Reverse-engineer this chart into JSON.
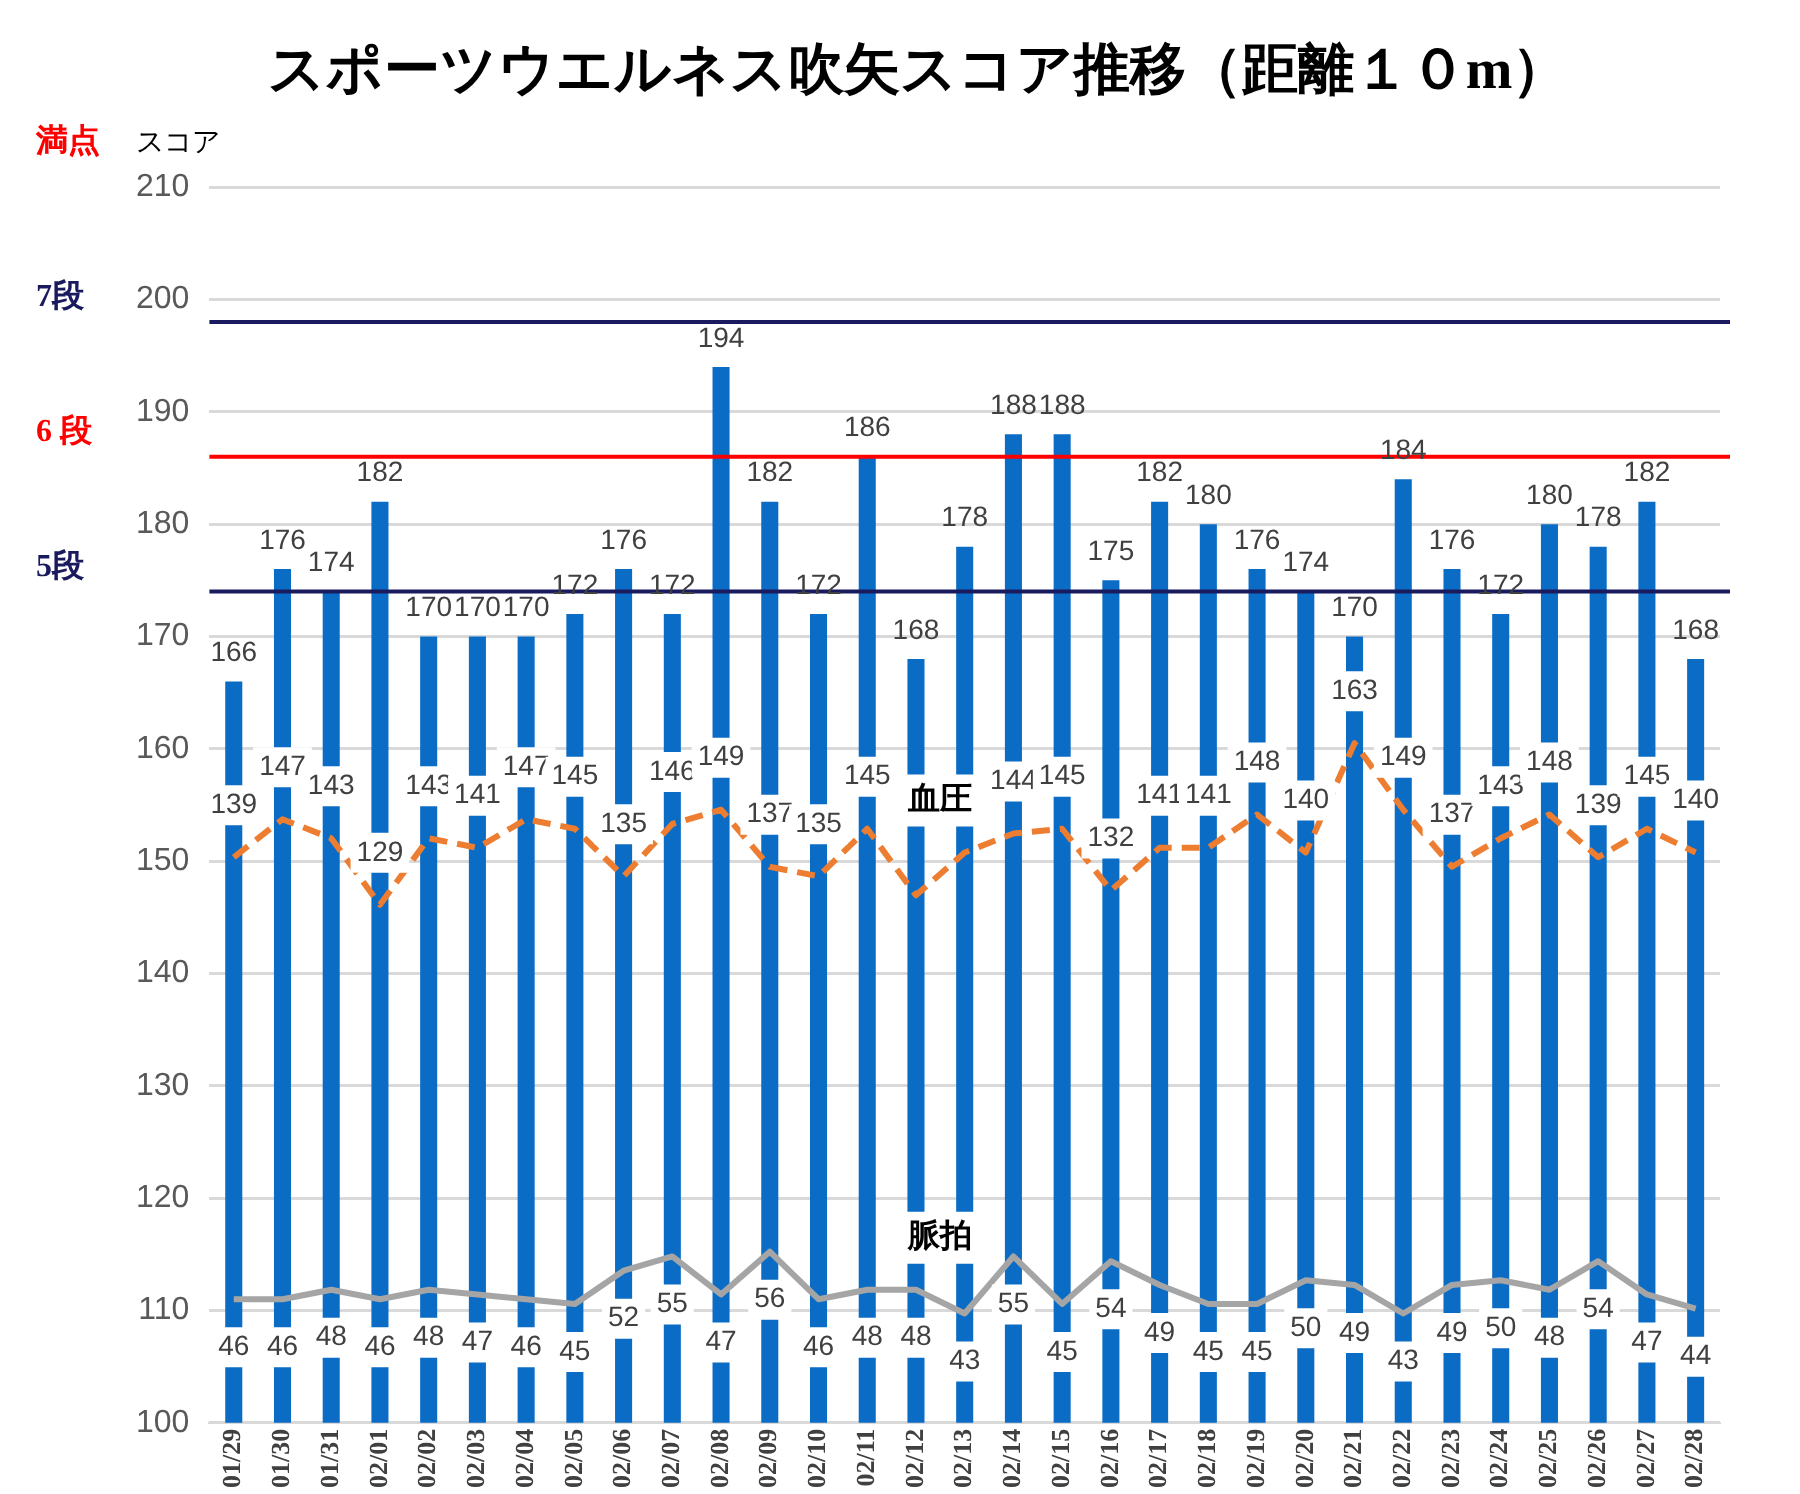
{
  "chart_data": {
    "type": "bar",
    "title": "スポーツウエルネス吹矢スコア推移（距離１０m）",
    "ylabel": "スコア",
    "annotations": [
      "満点"
    ],
    "categories": [
      "01/29",
      "01/30",
      "01/31",
      "02/01",
      "02/02",
      "02/03",
      "02/04",
      "02/05",
      "02/06",
      "02/07",
      "02/08",
      "02/09",
      "02/10",
      "02/11",
      "02/12",
      "02/13",
      "02/14",
      "02/15",
      "02/16",
      "02/17",
      "02/18",
      "02/19",
      "02/20",
      "02/21",
      "02/22",
      "02/23",
      "02/24",
      "02/25",
      "02/26",
      "02/27",
      "02/28"
    ],
    "series": [
      {
        "color": "#0a6cc4",
        "values": [
          166,
          176,
          174,
          182,
          170,
          170,
          170,
          172,
          176,
          172,
          194,
          182,
          172,
          186,
          168,
          178,
          188,
          188,
          175,
          182,
          180,
          176,
          174,
          170,
          184,
          176,
          172,
          180,
          178,
          182,
          168
        ],
        "value_labels": [
          "166",
          "176",
          "174",
          "182",
          "170",
          "170",
          "170",
          "172",
          "176",
          "172",
          "194",
          "182",
          "172",
          "186",
          "168",
          "178",
          "188",
          "188",
          "175",
          "182",
          "180",
          "176",
          "174",
          "170",
          "184",
          "176",
          "172",
          "180",
          "178",
          "182",
          "168"
        ]
      },
      {
        "type": "line",
        "name": "血圧",
        "axis": "y2",
        "color": "#ed7d31",
        "line_style": "dashed",
        "values": [
          139,
          147,
          143,
          129,
          143,
          141,
          147,
          145,
          135,
          146,
          149,
          137,
          135,
          145,
          131,
          140,
          144,
          145,
          132,
          141,
          141,
          148,
          140,
          163,
          149,
          137,
          143,
          148,
          139,
          145,
          140
        ],
        "value_labels": [
          "139",
          "147",
          "143",
          "129",
          "143",
          "141",
          "147",
          "145",
          "135",
          "146",
          "149",
          "137",
          "135",
          "145",
          null,
          null,
          "144",
          "145",
          "132",
          "141",
          "141",
          "148",
          "140",
          "163",
          "149",
          "137",
          "143",
          "148",
          "139",
          "145",
          "140"
        ]
      },
      {
        "type": "line",
        "name": "脈拍",
        "axis": "y2",
        "color": "#a5a5a5",
        "line_style": "solid",
        "values": [
          46,
          46,
          48,
          46,
          48,
          47,
          46,
          45,
          52,
          55,
          47,
          56,
          46,
          48,
          48,
          43,
          55,
          45,
          54,
          49,
          45,
          45,
          50,
          49,
          43,
          49,
          50,
          48,
          54,
          47,
          44
        ],
        "value_labels": [
          "46",
          "46",
          "48",
          "46",
          "48",
          "47",
          "46",
          "45",
          "52",
          "55",
          "47",
          "56",
          "46",
          "48",
          "48",
          "43",
          "55",
          "45",
          "54",
          "49",
          "45",
          "45",
          "50",
          "49",
          "43",
          "49",
          "50",
          "48",
          "54",
          "47",
          "44"
        ]
      }
    ],
    "ylim": [
      100,
      210
    ],
    "yticks": [
      100,
      110,
      120,
      130,
      140,
      150,
      160,
      170,
      180,
      190,
      200,
      210
    ],
    "y2lim": [
      20,
      280
    ],
    "ref_lines": [
      {
        "axis": "y",
        "value": 198,
        "label": "7段",
        "color": "#1a1a5e"
      },
      {
        "axis": "y",
        "value": 186,
        "label": "6 段",
        "color": "#ff0000"
      },
      {
        "axis": "y",
        "value": 174,
        "label": "5段",
        "color": "#1a1a5e"
      }
    ],
    "grid": "y",
    "legend": false,
    "marker": "none"
  }
}
